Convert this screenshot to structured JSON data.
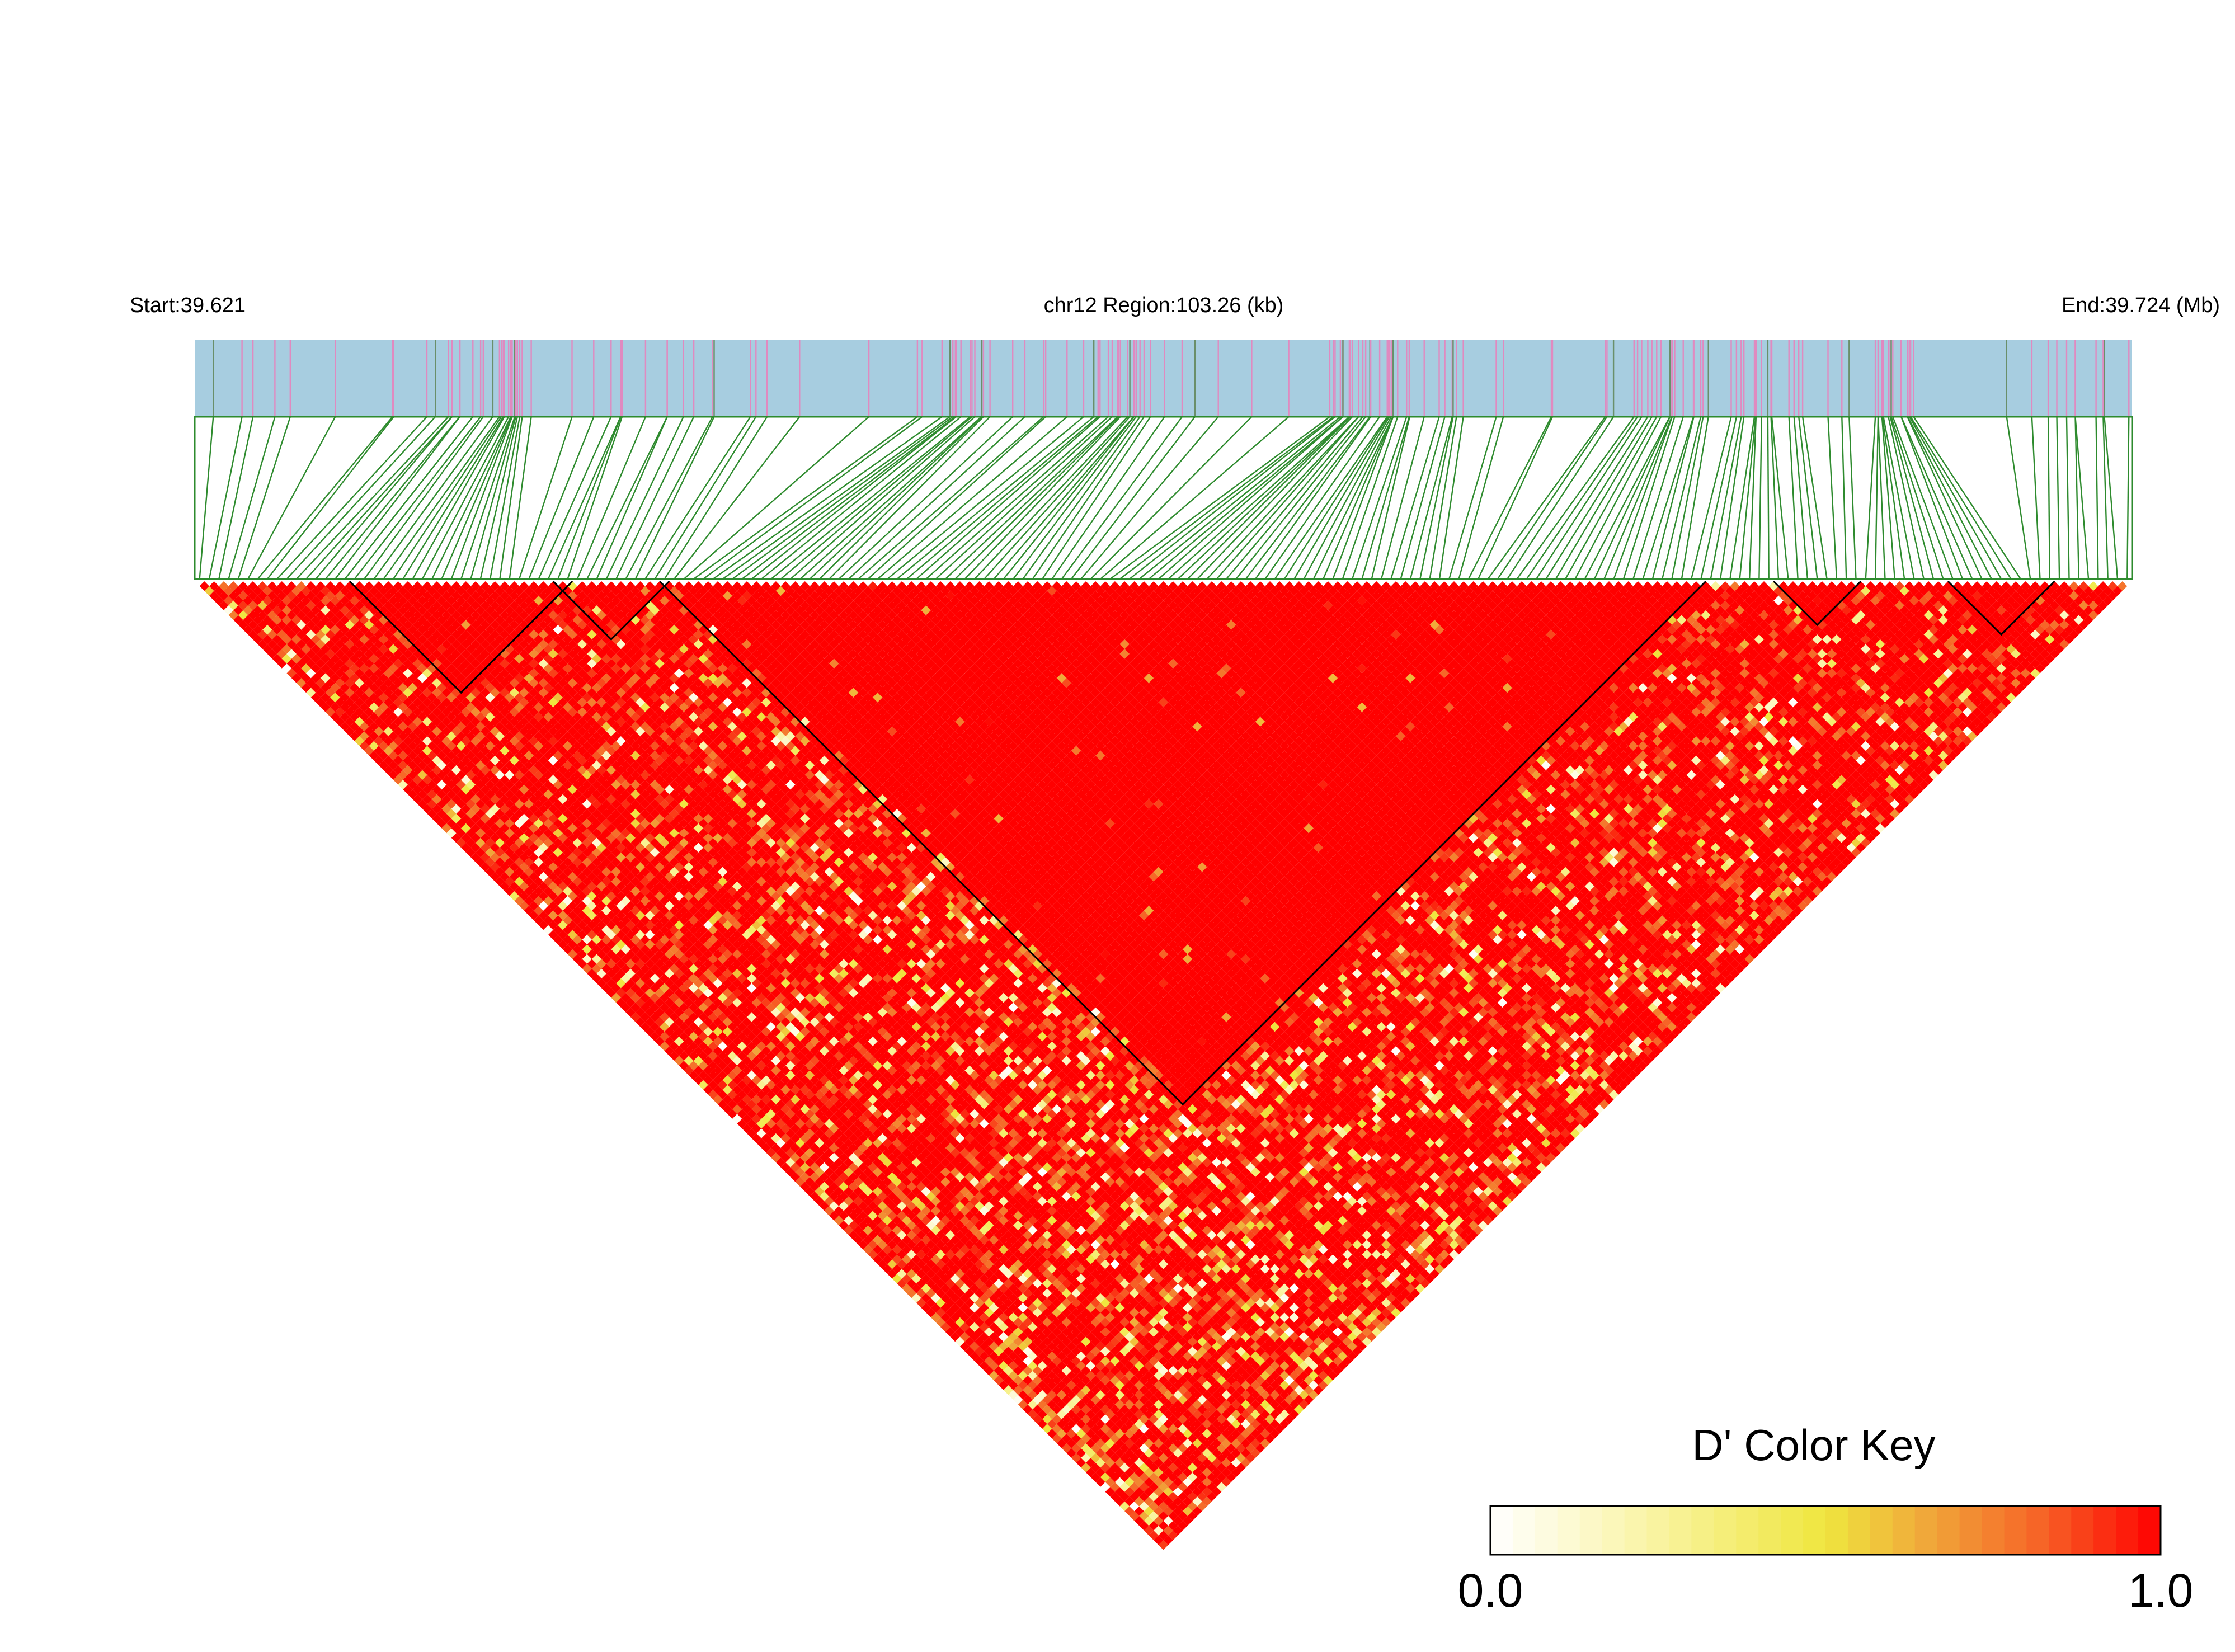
{
  "chart_data": {
    "type": "heatmap",
    "subtype": "ld-triangle",
    "header": {
      "start_label": "Start:39.621",
      "region_label": "chr12 Region:103.26 (kb)",
      "end_label": "End:39.724 (Mb)"
    },
    "region": {
      "chromosome": "chr12",
      "start_mb": 39.621,
      "end_mb": 39.724,
      "length_kb": 103.26
    },
    "marker_count": 200,
    "color_key": {
      "title": "D' Color Key",
      "min_label": "0.0",
      "max_label": "1.0",
      "min": 0.0,
      "max": 1.0,
      "stops": [
        "#ffffff",
        "#fbf6b4",
        "#efe63e",
        "#f0a83a",
        "#f66427",
        "#ff0000"
      ]
    },
    "colors": {
      "track": "#a7cde0",
      "variant_tick": "#e08ac0",
      "connector": "#2e8b2e",
      "strong_ld": "#ff0000",
      "block_outline": "#000000"
    },
    "dense_clusters_mb": [
      39.6365,
      39.6613,
      39.67,
      39.6838,
      39.6995,
      39.7045,
      39.7105
    ],
    "haplotype_blocks": [
      {
        "first_marker": 16,
        "last_marker": 38
      },
      {
        "first_marker": 37,
        "last_marker": 48
      },
      {
        "first_marker": 48,
        "last_marker": 155
      },
      {
        "first_marker": 163,
        "last_marker": 171
      },
      {
        "first_marker": 181,
        "last_marker": 191
      }
    ],
    "d_prime_summary": "mostly 1.0 (red) with scattered low values along inter-block diagonals"
  }
}
